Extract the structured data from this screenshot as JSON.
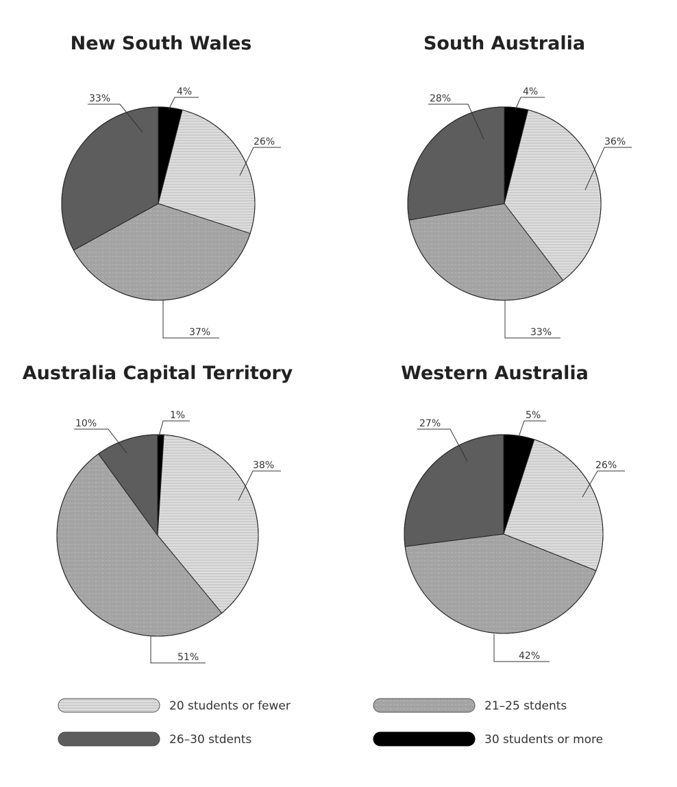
{
  "chart_data": [
    {
      "type": "pie",
      "title": "New South Wales",
      "categories": [
        "20 students or fewer",
        "21-25 stdents",
        "26-30 stdents",
        "30 students or more"
      ],
      "values": [
        26,
        37,
        33,
        4
      ],
      "labels": [
        "26%",
        "37%",
        "33%",
        "4%"
      ]
    },
    {
      "type": "pie",
      "title": "South Australia",
      "categories": [
        "20 students or fewer",
        "21-25 stdents",
        "26-30 stdents",
        "30 students or more"
      ],
      "values": [
        36,
        33,
        28,
        4
      ],
      "labels": [
        "36%",
        "33%",
        "28%",
        "4%"
      ]
    },
    {
      "type": "pie",
      "title": "Australia Capital Territory",
      "categories": [
        "20 students or fewer",
        "21-25 stdents",
        "26-30 stdents",
        "30 students or more"
      ],
      "values": [
        38,
        51,
        10,
        1
      ],
      "labels": [
        "38%",
        "51%",
        "10%",
        "1%"
      ]
    },
    {
      "type": "pie",
      "title": "Western Australia",
      "categories": [
        "20 students or fewer",
        "21-25 stdents",
        "26-30 stdents",
        "30 students or more"
      ],
      "values": [
        26,
        42,
        27,
        5
      ],
      "labels": [
        "26%",
        "42%",
        "27%",
        "5%"
      ]
    }
  ],
  "legend": {
    "items": [
      {
        "label": "20 students or fewer",
        "color": "#dcdcdc",
        "pattern": "horizontal-lines"
      },
      {
        "label": "21–25 stdents",
        "color": "#a3a3a3",
        "pattern": "dotted-lines"
      },
      {
        "label": "26–30 stdents",
        "color": "#5d5d5d",
        "pattern": "none"
      },
      {
        "label": "30 students or more",
        "color": "#000000",
        "pattern": "none"
      }
    ]
  },
  "colors": {
    "fewer_20": "#dcdcdc",
    "s21_25": "#a3a3a3",
    "s26_30": "#5d5d5d",
    "more_30": "#000000"
  }
}
